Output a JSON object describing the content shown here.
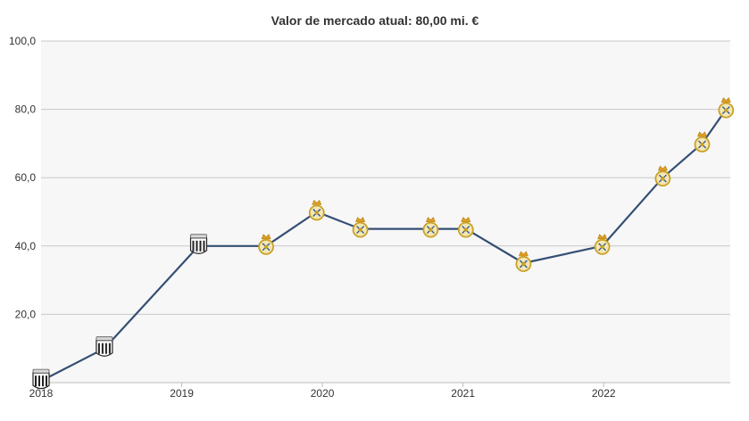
{
  "chart_data": {
    "type": "line",
    "title": "Valor de mercado atual: 80,00 mi. €",
    "xlabel": "",
    "ylabel": "",
    "x_ticks": [
      "2018",
      "2019",
      "2020",
      "2021",
      "2022"
    ],
    "y_ticks": [
      "20,0",
      "40,0",
      "60,0",
      "80,0",
      "100,0"
    ],
    "ylim": [
      0,
      100
    ],
    "xlim": [
      2018.0,
      2022.9
    ],
    "grid": true,
    "line_color": "#354f74",
    "plot_background": "#f7f7f7",
    "series": [
      {
        "points": [
          {
            "x": 2018.0,
            "y": 0.5,
            "club": "santos-crest"
          },
          {
            "x": 2018.45,
            "y": 10,
            "club": "santos-crest"
          },
          {
            "x": 2019.12,
            "y": 40,
            "club": "santos-crest"
          },
          {
            "x": 2019.6,
            "y": 40,
            "club": "real-madrid-crest"
          },
          {
            "x": 2019.96,
            "y": 50,
            "club": "real-madrid-crest"
          },
          {
            "x": 2020.27,
            "y": 45,
            "club": "real-madrid-crest"
          },
          {
            "x": 2020.77,
            "y": 45,
            "club": "real-madrid-crest"
          },
          {
            "x": 2021.02,
            "y": 45,
            "club": "real-madrid-crest"
          },
          {
            "x": 2021.43,
            "y": 35,
            "club": "real-madrid-crest"
          },
          {
            "x": 2021.99,
            "y": 40,
            "club": "real-madrid-crest"
          },
          {
            "x": 2022.42,
            "y": 60,
            "club": "real-madrid-crest"
          },
          {
            "x": 2022.7,
            "y": 70,
            "club": "real-madrid-crest"
          },
          {
            "x": 2022.87,
            "y": 80,
            "club": "real-madrid-crest"
          }
        ]
      }
    ]
  }
}
